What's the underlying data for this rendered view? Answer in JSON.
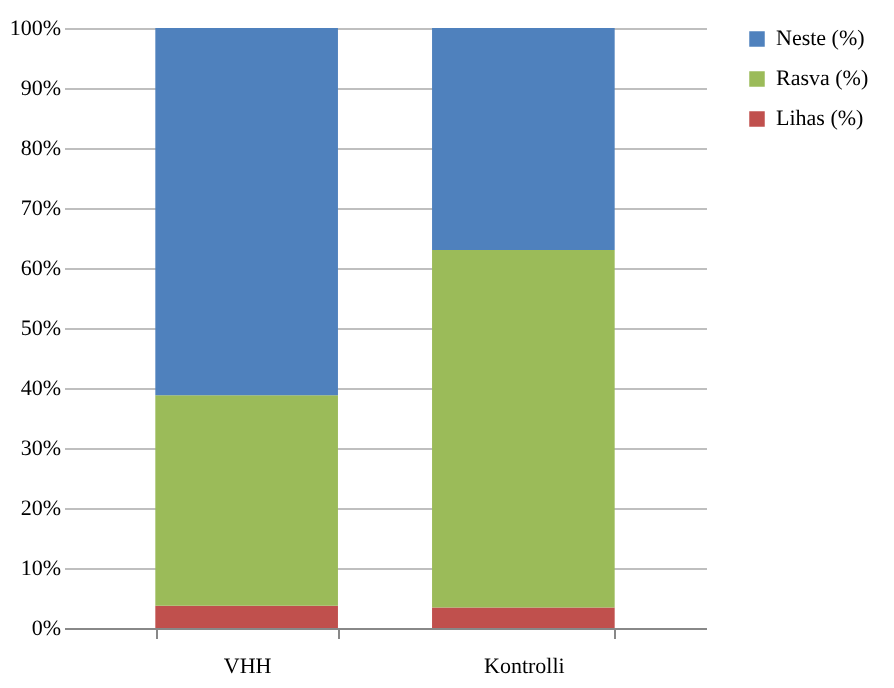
{
  "chart_data": {
    "type": "bar",
    "stacked": true,
    "categories": [
      "VHH",
      "Kontrolli"
    ],
    "series": [
      {
        "name": "Lihas (%)",
        "color": "#c0504d",
        "values": [
          3.7,
          3.4
        ]
      },
      {
        "name": "Rasva (%)",
        "color": "#9bbb59",
        "values": [
          35.1,
          59.6
        ]
      },
      {
        "name": "Neste (%)",
        "color": "#4f81bd",
        "values": [
          61.2,
          37.0
        ]
      }
    ],
    "ylim": [
      0,
      100
    ],
    "yticks": [
      {
        "value": 0,
        "label": "0%"
      },
      {
        "value": 10,
        "label": "10%"
      },
      {
        "value": 20,
        "label": "20%"
      },
      {
        "value": 30,
        "label": "30%"
      },
      {
        "value": 40,
        "label": "40%"
      },
      {
        "value": 50,
        "label": "50%"
      },
      {
        "value": 60,
        "label": "60%"
      },
      {
        "value": 70,
        "label": "70%"
      },
      {
        "value": 80,
        "label": "80%"
      },
      {
        "value": 90,
        "label": "90%"
      },
      {
        "value": 100,
        "label": "100%"
      }
    ],
    "grid": "y",
    "legend": "right"
  }
}
